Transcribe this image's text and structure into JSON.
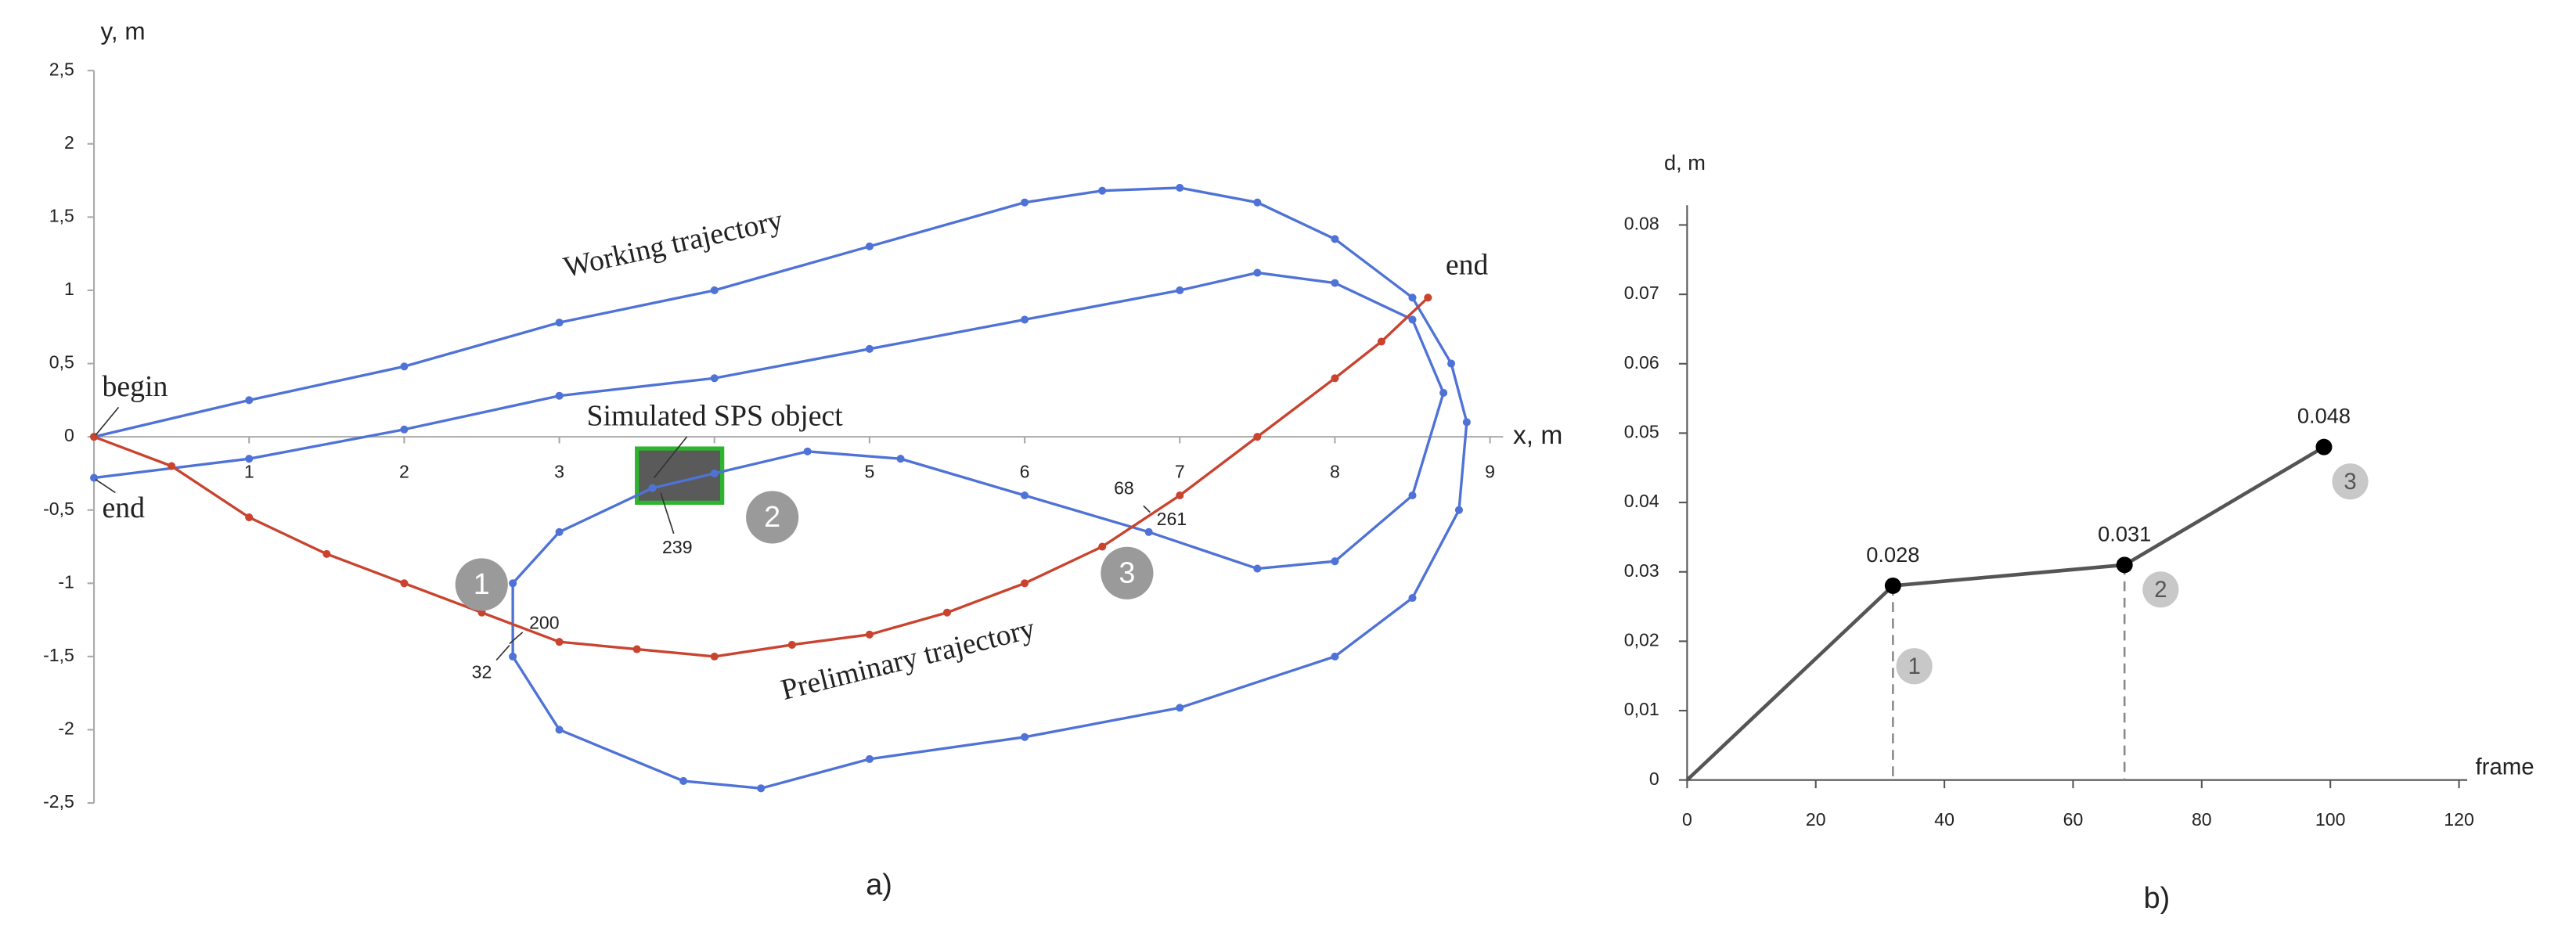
{
  "chart_data": [
    {
      "type": "trajectory",
      "title": "a)",
      "xlabel": "x, m",
      "ylabel": "y, m",
      "xlim": [
        0,
        9
      ],
      "ylim": [
        -2.5,
        2.5
      ],
      "xticks": [
        1,
        2,
        3,
        4,
        5,
        6,
        7,
        8,
        9
      ],
      "yticks": [
        {
          "value": 2.5,
          "label": "2,5"
        },
        2,
        {
          "value": 1.5,
          "label": "1,5"
        },
        1,
        {
          "value": 0.5,
          "label": "0,5"
        },
        0,
        {
          "value": -0.5,
          "label": "-0,5"
        },
        -1,
        {
          "value": -1.5,
          "label": "-1,5"
        },
        -2,
        {
          "value": -2.5,
          "label": "-2,5"
        }
      ],
      "series": [
        {
          "name": "Working trajectory",
          "color": "#4f72d6",
          "x": [
            0,
            1,
            2,
            3,
            4,
            5,
            6,
            6.5,
            7,
            7.5,
            8,
            8.5,
            8.75,
            8.85,
            8.8,
            8.5,
            8,
            7,
            6,
            5,
            4.3,
            3.8,
            3,
            2.7,
            2.7,
            3,
            3.6,
            4,
            4.6,
            5.2,
            6,
            6.8,
            7.5,
            8,
            8.5,
            8.7,
            8.5,
            8,
            7.5,
            7,
            6,
            5,
            4,
            3,
            2,
            1,
            0
          ],
          "values": [
            0,
            0.25,
            0.48,
            0.78,
            1.0,
            1.3,
            1.6,
            1.68,
            1.7,
            1.6,
            1.35,
            0.95,
            0.5,
            0.1,
            -0.5,
            -1.1,
            -1.5,
            -1.85,
            -2.05,
            -2.2,
            -2.4,
            -2.35,
            -2.0,
            -1.5,
            -1.0,
            -0.65,
            -0.35,
            -0.25,
            -0.1,
            -0.15,
            -0.4,
            -0.65,
            -0.9,
            -0.85,
            -0.4,
            0.3,
            0.8,
            1.05,
            1.12,
            1.0,
            0.8,
            0.6,
            0.4,
            0.28,
            0.05,
            -0.15,
            -0.28
          ]
        },
        {
          "name": "Preliminary trajectory",
          "color": "#c9432f",
          "x": [
            0,
            0.5,
            1,
            1.5,
            2,
            2.5,
            3,
            3.5,
            4,
            4.5,
            5,
            5.5,
            6,
            6.5,
            7,
            7.5,
            8,
            8.3,
            8.6
          ],
          "values": [
            0,
            -0.2,
            -0.55,
            -0.8,
            -1.0,
            -1.2,
            -1.4,
            -1.45,
            -1.5,
            -1.42,
            -1.35,
            -1.2,
            -1.0,
            -0.75,
            -0.4,
            0.0,
            0.4,
            0.65,
            0.95
          ]
        }
      ],
      "object": {
        "x": [
          3.5,
          4.05
        ],
        "y": [
          -0.45,
          -0.08
        ],
        "color": "#5a5a5a",
        "edge": "#2db52d"
      },
      "annotations": [
        "begin",
        "end",
        "end",
        "Simulated SPS object",
        "200",
        "32",
        "239",
        "68",
        "261"
      ],
      "markers": [
        "1",
        "2",
        "3"
      ]
    },
    {
      "type": "line",
      "title": "b)",
      "xlabel": "frame",
      "ylabel": "d, m",
      "xlim": [
        0,
        120
      ],
      "ylim": [
        0,
        0.08
      ],
      "xticks": [
        0,
        20,
        40,
        60,
        80,
        100,
        120
      ],
      "yticks": [
        0,
        {
          "value": 0.01,
          "label": "0,01"
        },
        {
          "value": 0.02,
          "label": "0,02"
        },
        0.03,
        0.04,
        0.05,
        0.06,
        0.07,
        0.08
      ],
      "x": [
        0,
        32,
        68,
        99
      ],
      "values": [
        0,
        0.028,
        0.031,
        0.048
      ],
      "value_labels": [
        null,
        "0.028",
        "0.031",
        "0.048"
      ],
      "color": "#555555",
      "markers": [
        "1",
        "2",
        "3"
      ]
    }
  ]
}
